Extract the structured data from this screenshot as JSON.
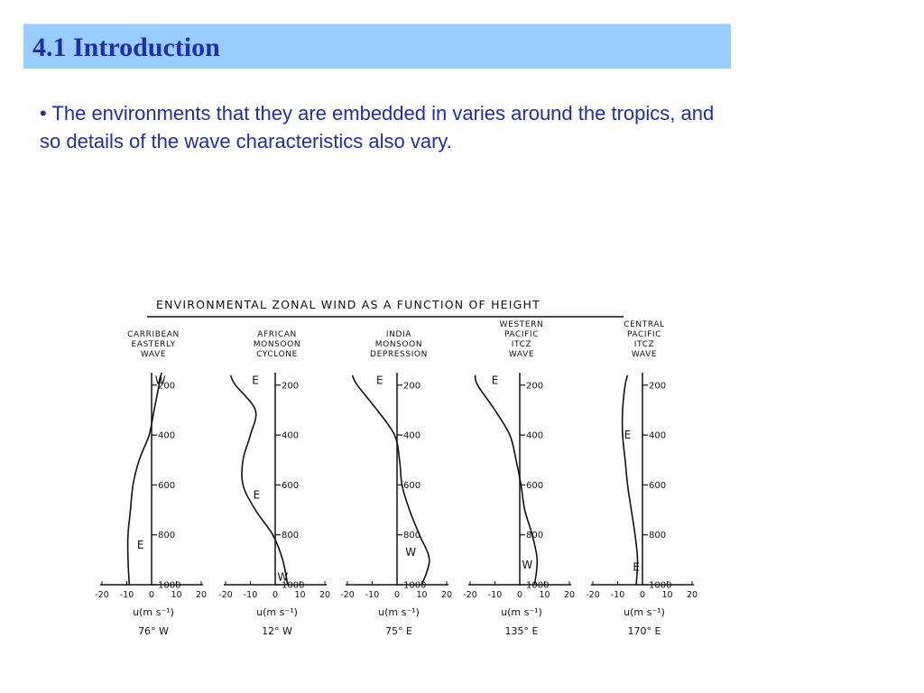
{
  "slide": {
    "title": "4.1 Introduction",
    "bullet": "• The environments that they are embedded in varies around the tropics, and so details of the wave characteristics also vary."
  },
  "chart_data": {
    "type": "line",
    "title": "ENVIRONMENTAL ZONAL WIND AS A FUNCTION OF HEIGHT",
    "xlabel": "u(m s⁻¹)",
    "xlim": [
      -20,
      20
    ],
    "xticks": [
      "-20",
      "-10",
      "0",
      "10",
      "20"
    ],
    "ylim": [
      150,
      1000
    ],
    "y_axis_reversed": true,
    "yticks": [
      "200",
      "400",
      "600",
      "800",
      "1000"
    ],
    "panels": [
      {
        "title_lines": [
          "CARRIBEAN",
          "EASTERLY",
          "WAVE"
        ],
        "longitude": "76° W",
        "labels": [
          {
            "text": "W",
            "u": 3.5,
            "p": 180
          },
          {
            "text": "E",
            "u": -4.5,
            "p": 840
          }
        ],
        "series": [
          {
            "p": [
              150,
              200,
              300,
              400,
              500,
              600,
              700,
              800,
              900,
              1000
            ],
            "u": [
              4,
              3,
              1,
              -1,
              -5,
              -7.5,
              -8.5,
              -9.5,
              -9.5,
              -9
            ]
          }
        ]
      },
      {
        "title_lines": [
          "AFRICAN",
          "MONSOON",
          "CYCLONE"
        ],
        "longitude": "12° W",
        "labels": [
          {
            "text": "E",
            "u": -8,
            "p": 180
          },
          {
            "text": "E",
            "u": -7.5,
            "p": 640
          },
          {
            "text": "W",
            "u": 3,
            "p": 970
          }
        ],
        "series": [
          {
            "p": [
              160,
              200,
              300,
              400,
              500,
              600,
              700,
              800,
              900,
              1000
            ],
            "u": [
              -18,
              -16,
              -8,
              -10,
              -13,
              -13,
              -8,
              -1,
              3,
              5
            ]
          }
        ]
      },
      {
        "title_lines": [
          "INDIA",
          "MONSOON",
          "DEPRESSION"
        ],
        "longitude": "75° E",
        "labels": [
          {
            "text": "E",
            "u": -7,
            "p": 180
          },
          {
            "text": "W",
            "u": 5.5,
            "p": 870
          }
        ],
        "series": [
          {
            "p": [
              160,
              200,
              300,
              400,
              500,
              600,
              700,
              800,
              900,
              1000
            ],
            "u": [
              -18,
              -16,
              -8,
              -1,
              1,
              2,
              5,
              9,
              13,
              10
            ]
          }
        ]
      },
      {
        "title_lines": [
          "WESTERN",
          "PACIFIC",
          "ITCZ",
          "WAVE"
        ],
        "longitude": "135° E",
        "labels": [
          {
            "text": "E",
            "u": -10,
            "p": 180
          },
          {
            "text": "W",
            "u": 3,
            "p": 920
          }
        ],
        "series": [
          {
            "p": [
              160,
              200,
              300,
              400,
              500,
              600,
              700,
              800,
              900,
              1000
            ],
            "u": [
              -18,
              -17,
              -10,
              -4,
              -1.5,
              0.5,
              2,
              5,
              7,
              6
            ]
          }
        ]
      },
      {
        "title_lines": [
          "CENTRAL",
          "PACIFIC",
          "ITCZ",
          "WAVE"
        ],
        "longitude": "170° E",
        "labels": [
          {
            "text": "E",
            "u": -6,
            "p": 400
          },
          {
            "text": "E",
            "u": -2.5,
            "p": 930
          }
        ],
        "series": [
          {
            "p": [
              160,
              200,
              300,
              400,
              500,
              600,
              700,
              800,
              900,
              1000
            ],
            "u": [
              -6,
              -7,
              -8,
              -8,
              -7,
              -6,
              -4.5,
              -3,
              -2,
              -2.5
            ]
          }
        ]
      }
    ]
  }
}
